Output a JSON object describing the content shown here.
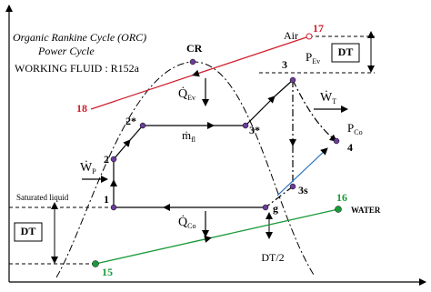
{
  "title": {
    "line1": "Organic Rankine Cycle (ORC)",
    "line2": "Power Cycle",
    "fluid": "WORKING FLUID : R152a"
  },
  "points": {
    "cr": "CR",
    "p1": "1",
    "p2": "2",
    "p2s": "2*",
    "p3": "3",
    "p3s": "3*",
    "p3ss": "3s",
    "p4": "4",
    "pg": "g"
  },
  "streams": {
    "air": "Air",
    "air_in": "17",
    "air_out": "18",
    "water": "WATER",
    "water_in": "15",
    "water_out": "16"
  },
  "quantities": {
    "q_ev": {
      "main": "Q̇",
      "sub": "Ev"
    },
    "q_co": {
      "main": "Q̇",
      "sub": "Co"
    },
    "w_t": {
      "main": "Ẇ",
      "sub": "T"
    },
    "w_p": {
      "main": "Ẇ",
      "sub": "P"
    },
    "m_fl": {
      "main": "ṁ",
      "sub": "fl"
    },
    "p_ev": {
      "main": "P",
      "sub": "Ev"
    },
    "p_co": {
      "main": "P",
      "sub": "Co"
    }
  },
  "labels": {
    "sat_liquid": "Saturated liquid",
    "dt_top": "DT",
    "dt_left": "DT",
    "dt_half": "DT/2"
  }
}
